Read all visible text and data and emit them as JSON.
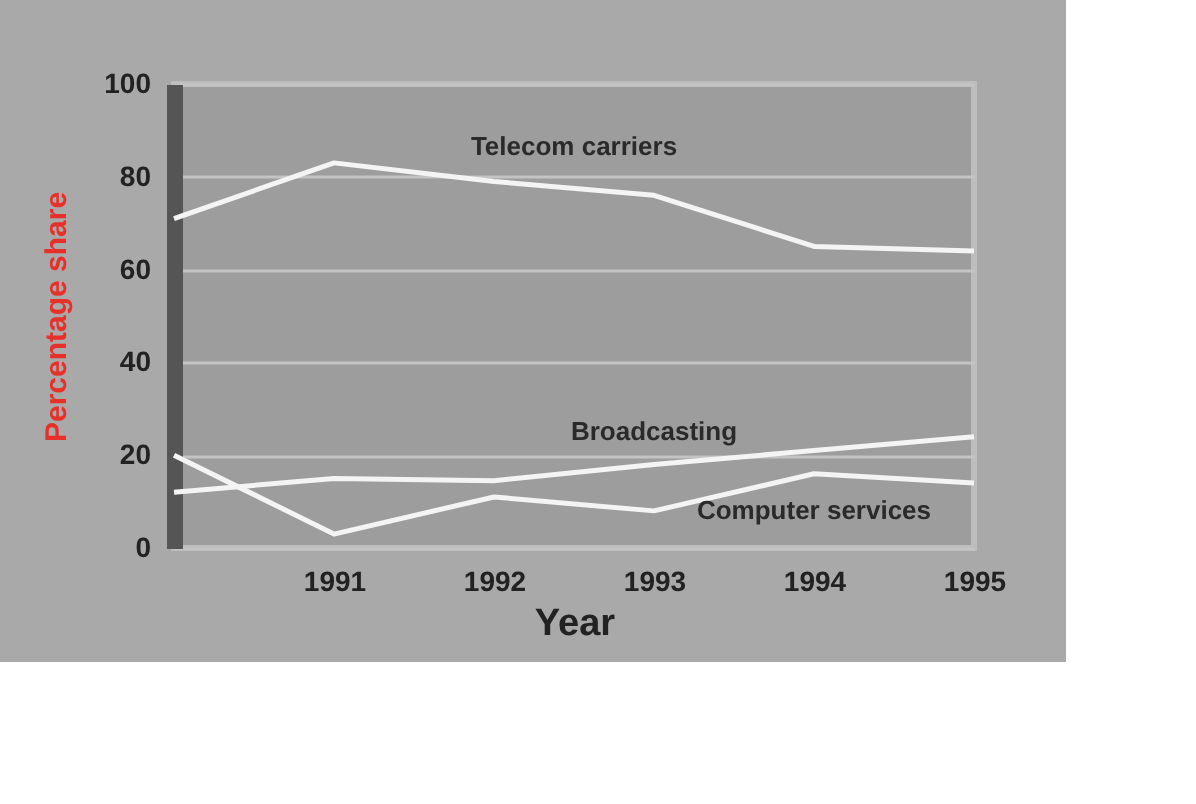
{
  "chart_data": {
    "type": "line",
    "xlabel": "Year",
    "ylabel": "Percentage share",
    "categories": [
      null,
      "1991",
      "1992",
      "1993",
      "1994",
      "1995"
    ],
    "series": [
      {
        "name": "Telecom carriers",
        "color": "#f4f4f4",
        "values": [
          71,
          83,
          79,
          76,
          65,
          64
        ]
      },
      {
        "name": "Broadcasting",
        "color": "#f4f4f4",
        "values": [
          12,
          15,
          14.5,
          18,
          21,
          24
        ]
      },
      {
        "name": "Computer services",
        "color": "#f4f4f4",
        "values": [
          20,
          3,
          11,
          8,
          16,
          14
        ]
      }
    ],
    "ylim": [
      0,
      100
    ],
    "yticks": [
      0,
      20,
      40,
      60,
      80,
      100
    ],
    "grid": "y",
    "legend": false,
    "marker": "none",
    "line_style": "solid"
  }
}
